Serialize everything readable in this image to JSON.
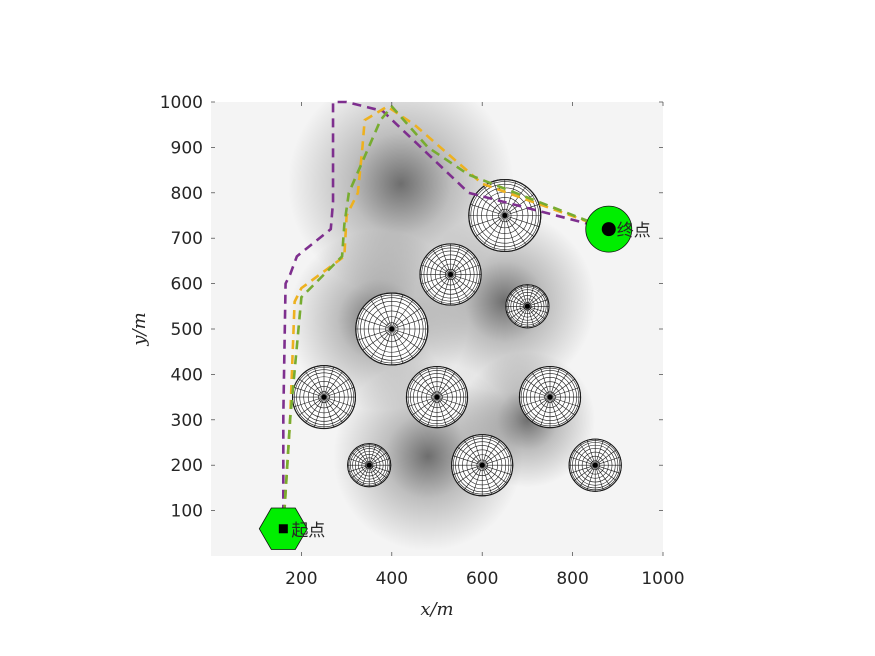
{
  "chart_data": {
    "type": "scatter",
    "title": "",
    "xlabel": "x/m",
    "ylabel": "y/m",
    "xlim": [
      0,
      1000
    ],
    "ylim": [
      0,
      1000
    ],
    "xticks": [
      200,
      400,
      600,
      800,
      1000
    ],
    "yticks": [
      100,
      200,
      300,
      400,
      500,
      600,
      700,
      800,
      900,
      1000
    ],
    "grid": false,
    "background": "grayscale potential field",
    "obstacles": [
      {
        "x": 650,
        "y": 750,
        "r": 80
      },
      {
        "x": 530,
        "y": 620,
        "r": 68
      },
      {
        "x": 700,
        "y": 550,
        "r": 48
      },
      {
        "x": 400,
        "y": 500,
        "r": 80
      },
      {
        "x": 250,
        "y": 350,
        "r": 70
      },
      {
        "x": 500,
        "y": 350,
        "r": 68
      },
      {
        "x": 750,
        "y": 350,
        "r": 68
      },
      {
        "x": 350,
        "y": 200,
        "r": 48
      },
      {
        "x": 600,
        "y": 200,
        "r": 68
      },
      {
        "x": 850,
        "y": 200,
        "r": 58
      }
    ],
    "start": {
      "x": 160,
      "y": 60,
      "label": "起点"
    },
    "goal": {
      "x": 880,
      "y": 720,
      "label": "终点"
    },
    "series": [
      {
        "color": "#7e2f8e",
        "x": [
          160,
          160,
          165,
          175,
          190,
          265,
          270,
          270,
          300,
          380,
          570,
          880
        ],
        "y": [
          60,
          310,
          600,
          620,
          660,
          720,
          780,
          1000,
          1000,
          980,
          800,
          720
        ]
      },
      {
        "color": "#edb120",
        "x": [
          160,
          175,
          185,
          200,
          295,
          300,
          325,
          335,
          340,
          390,
          450,
          600,
          880
        ],
        "y": [
          60,
          300,
          560,
          590,
          660,
          750,
          800,
          900,
          960,
          990,
          950,
          820,
          720
        ]
      },
      {
        "color": "#77ac30",
        "x": [
          160,
          175,
          200,
          290,
          295,
          305,
          375,
          400,
          480,
          570,
          880
        ],
        "y": [
          60,
          300,
          570,
          660,
          730,
          800,
          960,
          990,
          900,
          840,
          720
        ]
      }
    ]
  }
}
